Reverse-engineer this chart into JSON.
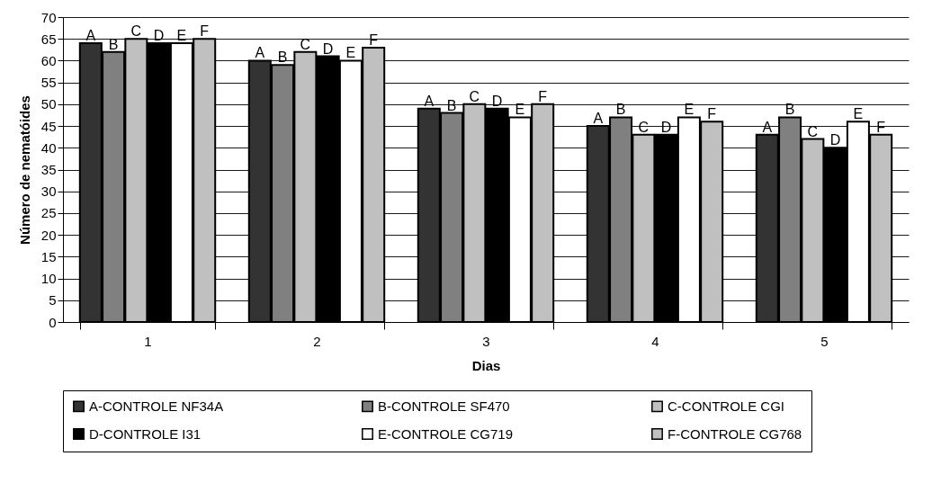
{
  "chart_data": {
    "type": "bar",
    "xlabel": "Dias",
    "ylabel": "Número de nematóides",
    "categories": [
      "1",
      "2",
      "3",
      "4",
      "5"
    ],
    "series": [
      {
        "name": "A-CONTROLE NF34A",
        "color": "#333333",
        "values": [
          64,
          60,
          49,
          45,
          43
        ],
        "value_labels": [
          "A",
          "A",
          "A",
          "A",
          "A"
        ]
      },
      {
        "name": "B-CONTROLE SF470",
        "color": "#808080",
        "values": [
          62,
          59,
          48,
          47,
          47
        ],
        "value_labels": [
          "B",
          "B",
          "B",
          "B",
          "B"
        ]
      },
      {
        "name": "C-CONTROLE CGI",
        "color": "#c0c0c0",
        "values": [
          65,
          62,
          50,
          43,
          42
        ],
        "value_labels": [
          "C",
          "C",
          "C",
          "C",
          "C"
        ]
      },
      {
        "name": "D-CONTROLE I31",
        "color": "#000000",
        "values": [
          64,
          61,
          49,
          43,
          40
        ],
        "value_labels": [
          "D",
          "D",
          "D",
          "D",
          "D"
        ]
      },
      {
        "name": "E-CONTROLE CG719",
        "color": "#ffffff",
        "values": [
          64,
          60,
          47,
          47,
          46
        ],
        "value_labels": [
          "E",
          "E",
          "E",
          "E",
          "E"
        ]
      },
      {
        "name": "F-CONTROLE CG768",
        "color": "#c0c0c0",
        "values": [
          65,
          63,
          50,
          46,
          43
        ],
        "value_labels": [
          "F",
          "F",
          "F",
          "F",
          "F"
        ]
      }
    ],
    "ylim": [
      0,
      70
    ],
    "yticks": [
      0,
      5,
      10,
      15,
      20,
      25,
      30,
      35,
      40,
      45,
      50,
      55,
      60,
      65,
      70
    ],
    "grid": "y",
    "legend": "bottom"
  }
}
